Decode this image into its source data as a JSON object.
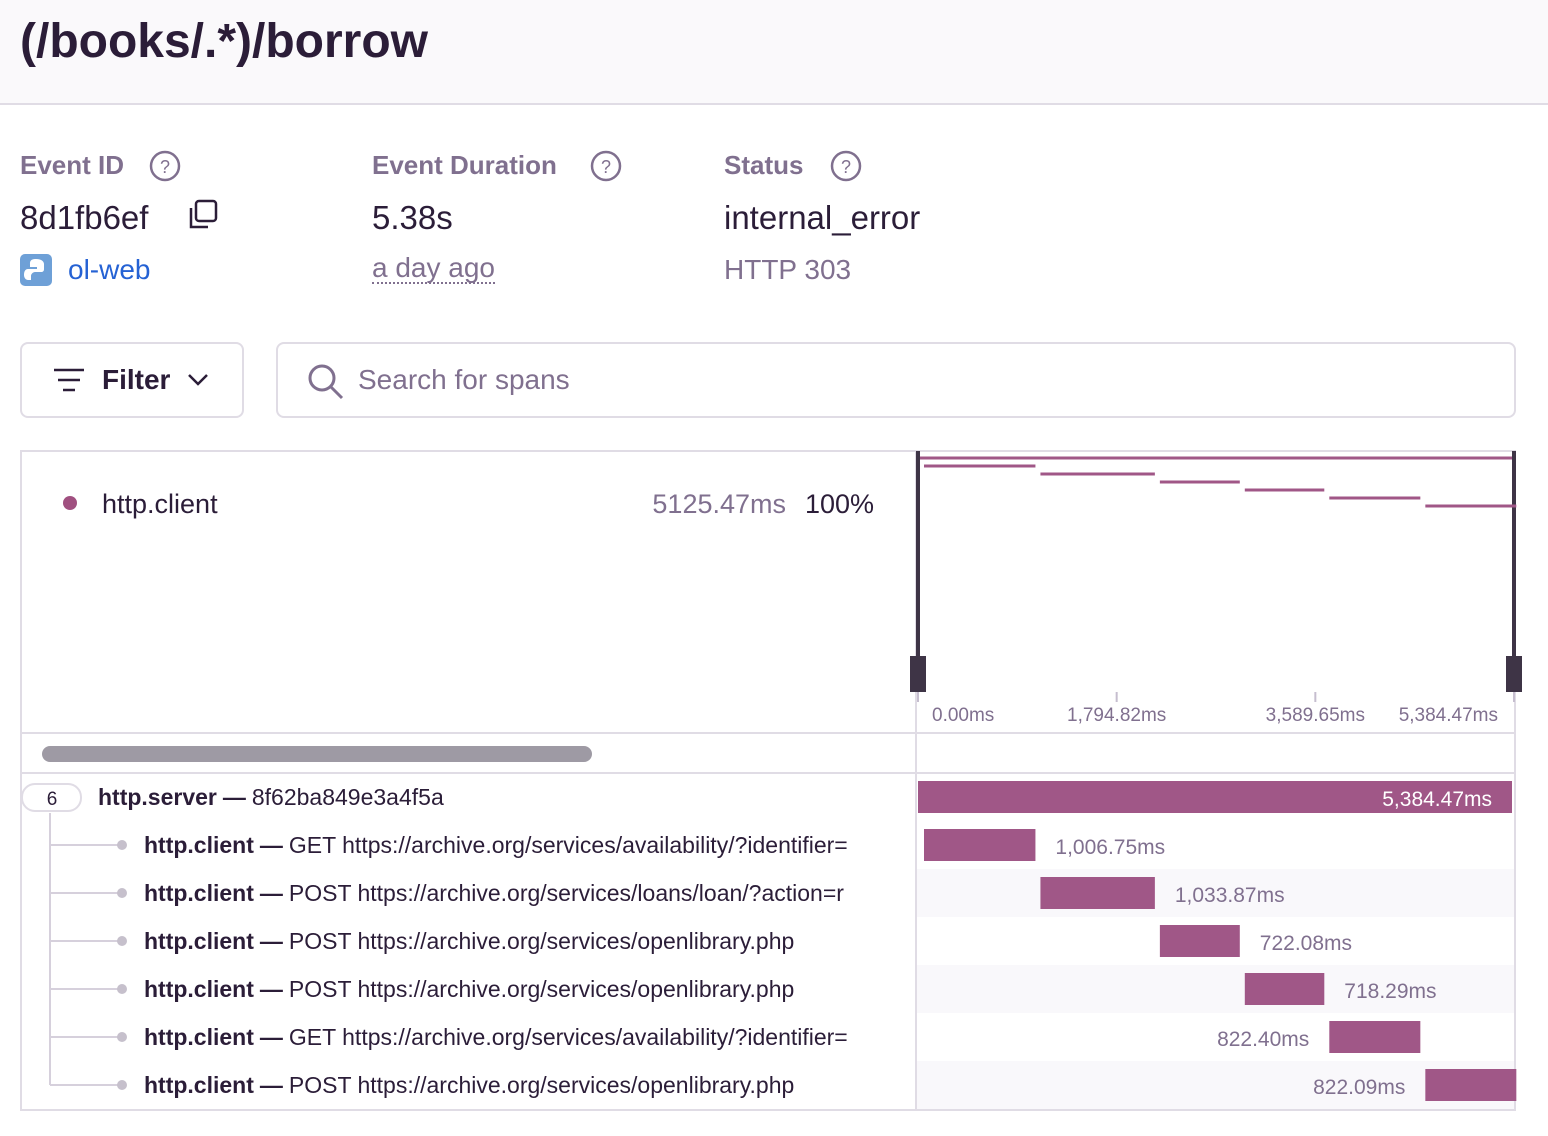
{
  "header": {
    "title": "(/books/.*)/borrow"
  },
  "event": {
    "id_label": "Event ID",
    "id": "8d1fb6ef",
    "project": "ol-web",
    "duration_label": "Event Duration",
    "duration": "5.38s",
    "time": "a day ago",
    "status_label": "Status",
    "status": "internal_error",
    "http_status": "HTTP 303"
  },
  "toolbar": {
    "filter": "Filter",
    "search_placeholder": "Search for spans"
  },
  "minimap": {
    "legend": [
      {
        "op": "http.client",
        "duration": "5125.47ms",
        "percent": "100%"
      }
    ],
    "ticks": [
      {
        "value": 0,
        "label": "0.00ms"
      },
      {
        "value": 1794.82,
        "label": "1,794.82ms"
      },
      {
        "value": 3589.65,
        "label": "3,589.65ms"
      },
      {
        "value": 5384.47,
        "label": "5,384.47ms"
      }
    ]
  },
  "spans": {
    "root": {
      "children_count": 6,
      "op": "http.server",
      "separator": "—",
      "id": "8f62ba849e3a4f5a",
      "duration": {
        "value": 5384.47,
        "label": "5,384.47ms"
      }
    },
    "children": [
      {
        "op": "http.client",
        "separator": "—",
        "description": "GET https://archive.org/services/availability/?identifier=",
        "duration": {
          "value": 1006.75,
          "label": "1,006.75ms"
        }
      },
      {
        "op": "http.client",
        "separator": "—",
        "description": "POST https://archive.org/services/loans/loan/?action=r",
        "duration": {
          "value": 1033.87,
          "label": "1,033.87ms"
        }
      },
      {
        "op": "http.client",
        "separator": "—",
        "description": "POST https://archive.org/services/openlibrary.php",
        "duration": {
          "value": 722.08,
          "label": "722.08ms"
        }
      },
      {
        "op": "http.client",
        "separator": "—",
        "description": "POST https://archive.org/services/openlibrary.php",
        "duration": {
          "value": 718.29,
          "label": "718.29ms"
        }
      },
      {
        "op": "http.client",
        "separator": "—",
        "description": "GET https://archive.org/services/availability/?identifier=",
        "duration": {
          "value": 822.4,
          "label": "822.40ms"
        }
      },
      {
        "op": "http.client",
        "separator": "—",
        "description": "POST https://archive.org/services/openlibrary.php",
        "duration": {
          "value": 822.09,
          "label": "822.09ms"
        }
      }
    ]
  }
}
